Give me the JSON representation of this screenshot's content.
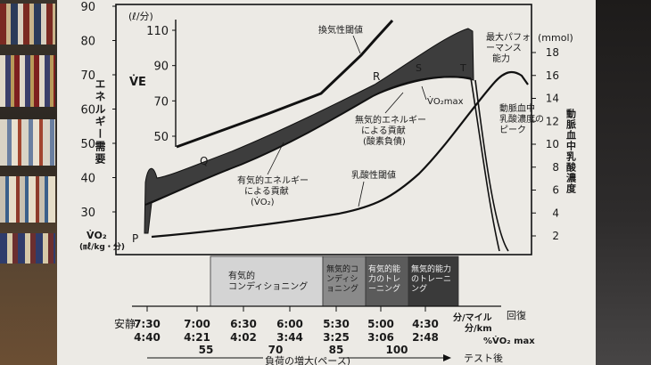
{
  "chart_data": {
    "type": "line",
    "left_axis": {
      "label": "エネルギー需要",
      "label_symbol": "V̇O₂",
      "label_unit": "(㎖/kg・分)",
      "ticks": [
        "90",
        "80",
        "70",
        "60",
        "50",
        "40",
        "30"
      ]
    },
    "ve_axis": {
      "label": "V̇E",
      "unit": "(ℓ/分)",
      "ticks": [
        "110",
        "90",
        "70",
        "50"
      ]
    },
    "right_axis": {
      "label": "動脈血中乳酸濃度",
      "unit": "(mmol)",
      "ticks": [
        "18",
        "16",
        "14",
        "12",
        "10",
        "8",
        "6",
        "4",
        "2"
      ]
    },
    "annotations": {
      "vent_threshold": "換気性閾値",
      "max_performance": [
        "最大パフォ",
        "ーマンス",
        "能力"
      ],
      "R": "R",
      "S": "S",
      "T": "T",
      "P": "P",
      "Q": "Q",
      "vo2max": "V̇O₂max",
      "anaerobic": [
        "無気的エネルギー",
        "による貢献",
        "(酸素負債)"
      ],
      "aerobic": [
        "有気的エネルギー",
        "による貢献",
        "(V̇O₂)"
      ],
      "lactate_threshold": "乳酸性閾値",
      "lactate_peak": [
        "動脈血中",
        "乳酸濃度の",
        "ピーク"
      ]
    },
    "zones": [
      {
        "label": [
          "有気的",
          "コンディショニング"
        ],
        "shade": "#cfcfcf"
      },
      {
        "label": [
          "無気的コ",
          "ンディシ",
          "ョニング"
        ],
        "shade": "#8a8a8a"
      },
      {
        "label": [
          "有気的能",
          "力のトレ",
          "ーニング"
        ],
        "shade": "#5a5a5a"
      },
      {
        "label": [
          "無気的能力",
          "のトレーニ",
          "ング"
        ],
        "shade": "#3a3a3a"
      }
    ],
    "pace_rows": {
      "rest": "安静",
      "per_mile": [
        "7:30",
        "7:00",
        "6:30",
        "6:00",
        "5:30",
        "5:00",
        "4:30"
      ],
      "per_km": [
        "4:40",
        "4:21",
        "4:02",
        "3:44",
        "3:25",
        "3:06",
        "2:48"
      ],
      "pct_vo2max": [
        "55",
        "70",
        "85",
        "100"
      ],
      "unit_mile": "分/マイル",
      "unit_km": "分/km",
      "unit_pct": "%V̇O₂ max",
      "recovery": "回復"
    },
    "bottom": {
      "progression": "負荷の増大(ペース)",
      "post_test": "テスト後"
    }
  }
}
